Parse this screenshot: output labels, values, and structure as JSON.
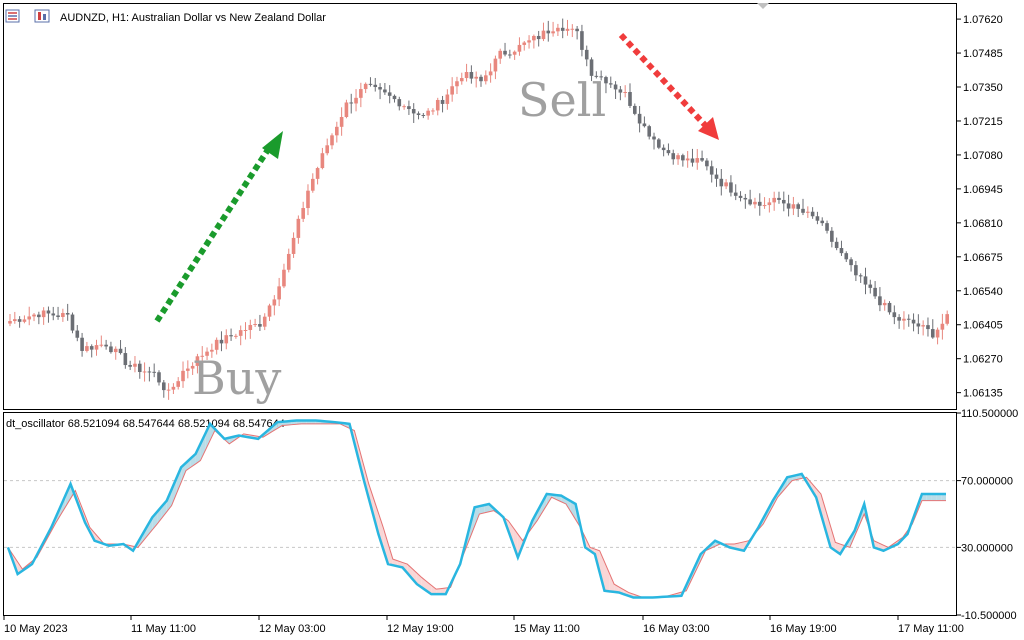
{
  "header": {
    "symbol_title": "AUDNZD, H1:  Australian Dollar vs New Zealand Dollar",
    "oscillator_title": "dt_oscillator 68.521094 68.547644 68.521094 68.547644"
  },
  "annotations": {
    "buy": "Buy",
    "sell": "Sell"
  },
  "colors": {
    "bull": "#e8877e",
    "bear": "#6b6e74",
    "osc_main": "#29b6e0",
    "osc_signal": "#e57373",
    "fill_up": "#b9dde8",
    "fill_down": "#f9d6d6",
    "buy_arrow": "#1a9b2c",
    "sell_arrow": "#f03c3c",
    "grid": "#c8c8c8"
  },
  "icons": [
    "chart-list-icon",
    "chart-type-icon"
  ],
  "chart_data": [
    {
      "type": "candlestick",
      "title": "AUDNZD, H1:  Australian Dollar vs New Zealand Dollar",
      "ylim": [
        1.0607,
        1.0768
      ],
      "y_ticks": [
        "1.07620",
        "1.07485",
        "1.07350",
        "1.07215",
        "1.07080",
        "1.06945",
        "1.06810",
        "1.06675",
        "1.06540",
        "1.06405",
        "1.06270",
        "1.06135"
      ],
      "x_ticks": [
        "10 May 2023",
        "11 May 11:00",
        "12 May 03:00",
        "12 May 19:00",
        "15 May 11:00",
        "16 May 03:00",
        "16 May 19:00",
        "17 May 11:00"
      ],
      "close_anchors": [
        [
          0,
          1.0642
        ],
        [
          6,
          1.0645
        ],
        [
          12,
          1.0644
        ],
        [
          15,
          1.0631
        ],
        [
          20,
          1.0633
        ],
        [
          25,
          1.0624
        ],
        [
          30,
          1.0621
        ],
        [
          33,
          1.0613
        ],
        [
          36,
          1.0622
        ],
        [
          42,
          1.0632
        ],
        [
          48,
          1.0638
        ],
        [
          52,
          1.0641
        ],
        [
          55,
          1.0652
        ],
        [
          58,
          1.0668
        ],
        [
          62,
          1.0694
        ],
        [
          66,
          1.0712
        ],
        [
          70,
          1.0728
        ],
        [
          74,
          1.0735
        ],
        [
          78,
          1.0732
        ],
        [
          82,
          1.0728
        ],
        [
          86,
          1.0723
        ],
        [
          90,
          1.073
        ],
        [
          94,
          1.074
        ],
        [
          98,
          1.0737
        ],
        [
          102,
          1.0748
        ],
        [
          106,
          1.0751
        ],
        [
          110,
          1.0755
        ],
        [
          114,
          1.076
        ],
        [
          118,
          1.0756
        ],
        [
          121,
          1.0741
        ],
        [
          124,
          1.0738
        ],
        [
          128,
          1.0732
        ],
        [
          132,
          1.0719
        ],
        [
          136,
          1.071
        ],
        [
          140,
          1.0706
        ],
        [
          144,
          1.0705
        ],
        [
          148,
          1.0697
        ],
        [
          152,
          1.0692
        ],
        [
          156,
          1.0688
        ],
        [
          160,
          1.069
        ],
        [
          164,
          1.0686
        ],
        [
          168,
          1.0682
        ],
        [
          172,
          1.0671
        ],
        [
          176,
          1.066
        ],
        [
          180,
          1.0652
        ],
        [
          184,
          1.0643
        ],
        [
          188,
          1.0641
        ],
        [
          192,
          1.0637
        ],
        [
          195,
          1.0643
        ]
      ]
    },
    {
      "type": "line",
      "title": "dt_oscillator 68.521094 68.547644 68.521094 68.547644",
      "ylim": [
        -10.5,
        110.5
      ],
      "y_ticks": [
        "110.500000",
        "70.000000",
        "30.000000",
        "-10.500000"
      ],
      "levels": [
        70,
        30
      ],
      "series": [
        {
          "role": "main",
          "anchors": [
            [
              0,
              30
            ],
            [
              2,
              14
            ],
            [
              5,
              20
            ],
            [
              9,
              42
            ],
            [
              13,
              68
            ],
            [
              16,
              45
            ],
            [
              18,
              34
            ],
            [
              21,
              31
            ],
            [
              24,
              32
            ],
            [
              26,
              28
            ],
            [
              30,
              48
            ],
            [
              33,
              58
            ],
            [
              36,
              78
            ],
            [
              39,
              86
            ],
            [
              42,
              104
            ],
            [
              45,
              95
            ],
            [
              48,
              97
            ],
            [
              52,
              95
            ],
            [
              56,
              105
            ],
            [
              60,
              106
            ],
            [
              64,
              106
            ],
            [
              68,
              105
            ],
            [
              71,
              104
            ],
            [
              74,
              70
            ],
            [
              77,
              38
            ],
            [
              79,
              20
            ],
            [
              82,
              18
            ],
            [
              85,
              8
            ],
            [
              88,
              2
            ],
            [
              91,
              2
            ],
            [
              94,
              20
            ],
            [
              97,
              54
            ],
            [
              100,
              56
            ],
            [
              103,
              48
            ],
            [
              106,
              24
            ],
            [
              109,
              46
            ],
            [
              112,
              62
            ],
            [
              115,
              61
            ],
            [
              118,
              56
            ],
            [
              120,
              30
            ],
            [
              122,
              26
            ],
            [
              124,
              4
            ],
            [
              127,
              3
            ],
            [
              130,
              0
            ],
            [
              134,
              0
            ],
            [
              140,
              1
            ],
            [
              144,
              26
            ],
            [
              147,
              34
            ],
            [
              150,
              30
            ],
            [
              153,
              28
            ],
            [
              156,
              42
            ],
            [
              159,
              58
            ],
            [
              162,
              72
            ],
            [
              165,
              74
            ],
            [
              168,
              60
            ],
            [
              171,
              30
            ],
            [
              173,
              26
            ],
            [
              176,
              40
            ],
            [
              178,
              56
            ],
            [
              180,
              30
            ],
            [
              182,
              28
            ],
            [
              185,
              32
            ],
            [
              187,
              38
            ],
            [
              190,
              62
            ]
          ]
        },
        {
          "role": "signal",
          "anchors": [
            [
              0,
              30
            ],
            [
              3,
              17
            ],
            [
              6,
              24
            ],
            [
              10,
              45
            ],
            [
              14,
              64
            ],
            [
              17,
              42
            ],
            [
              20,
              32
            ],
            [
              24,
              32
            ],
            [
              27,
              30
            ],
            [
              31,
              44
            ],
            [
              34,
              55
            ],
            [
              37,
              76
            ],
            [
              40,
              82
            ],
            [
              43,
              100
            ],
            [
              46,
              92
            ],
            [
              49,
              98
            ],
            [
              53,
              96
            ],
            [
              57,
              103
            ],
            [
              61,
              104
            ],
            [
              65,
              104
            ],
            [
              69,
              104
            ],
            [
              72,
              100
            ],
            [
              75,
              68
            ],
            [
              78,
              42
            ],
            [
              80,
              23
            ],
            [
              83,
              20
            ],
            [
              86,
              12
            ],
            [
              89,
              5
            ],
            [
              92,
              6
            ],
            [
              95,
              28
            ],
            [
              98,
              50
            ],
            [
              101,
              52
            ],
            [
              104,
              46
            ],
            [
              107,
              34
            ],
            [
              110,
              46
            ],
            [
              113,
              60
            ],
            [
              116,
              56
            ],
            [
              119,
              42
            ],
            [
              121,
              30
            ],
            [
              123,
              28
            ],
            [
              126,
              8
            ],
            [
              129,
              3
            ],
            [
              132,
              0
            ],
            [
              136,
              0
            ],
            [
              141,
              4
            ],
            [
              145,
              28
            ],
            [
              148,
              32
            ],
            [
              151,
              32
            ],
            [
              154,
              34
            ],
            [
              157,
              44
            ],
            [
              160,
              60
            ],
            [
              163,
              70
            ],
            [
              166,
              72
            ],
            [
              169,
              62
            ],
            [
              172,
              33
            ],
            [
              175,
              30
            ],
            [
              178,
              50
            ],
            [
              180,
              34
            ],
            [
              183,
              30
            ],
            [
              186,
              36
            ],
            [
              188,
              44
            ],
            [
              190,
              58
            ]
          ]
        }
      ]
    }
  ]
}
